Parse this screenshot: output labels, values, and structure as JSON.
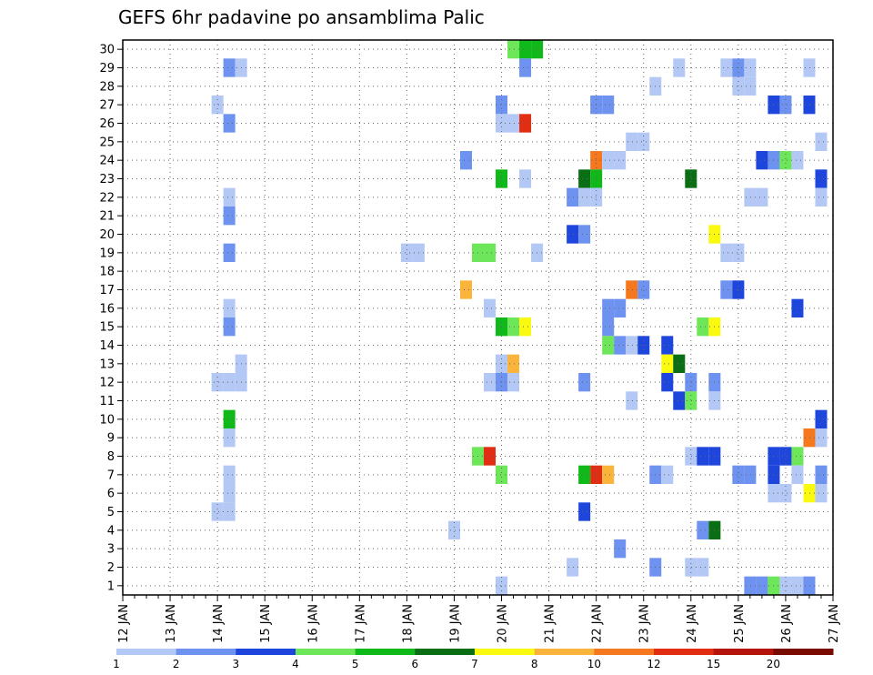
{
  "chart_data": {
    "type": "heatmap",
    "title": "GEFS 6hr padavine po ansamblima Palic",
    "xlabel": "",
    "ylabel": "",
    "x_unit": "days (6-hourly steps)",
    "xlim": [
      12.0,
      27.0
    ],
    "ylim": [
      0,
      30
    ],
    "x_tick_labels": [
      "12 JAN",
      "13 JAN",
      "14 JAN",
      "15 JAN",
      "16 JAN",
      "17 JAN",
      "18 JAN",
      "19 JAN",
      "20 JAN",
      "21 JAN",
      "22 JAN",
      "23 JAN",
      "24 JAN",
      "25 JAN",
      "26 JAN",
      "27 JAN"
    ],
    "y_tick_labels": [
      "1",
      "2",
      "3",
      "4",
      "5",
      "6",
      "7",
      "8",
      "9",
      "10",
      "11",
      "12",
      "13",
      "14",
      "15",
      "16",
      "17",
      "18",
      "19",
      "20",
      "21",
      "22",
      "23",
      "24",
      "25",
      "26",
      "27",
      "28",
      "29",
      "30"
    ],
    "grid": true,
    "colorbar": {
      "labels": [
        "1",
        "2",
        "3",
        "4",
        "5",
        "6",
        "7",
        "8",
        "10",
        "12",
        "15",
        "20"
      ],
      "colors": [
        "#b4c8f5",
        "#6e92ef",
        "#1e46dc",
        "#6ee65a",
        "#10b91a",
        "#0a6e14",
        "#fafa10",
        "#fab43c",
        "#f5781e",
        "#e12d12",
        "#b4140a",
        "#780a00"
      ]
    },
    "cells": [
      {
        "x": 14.0,
        "y": 27,
        "c": 0
      },
      {
        "x": 14.0,
        "y": 12,
        "c": 0
      },
      {
        "x": 14.0,
        "y": 5,
        "c": 0
      },
      {
        "x": 14.25,
        "y": 29,
        "c": 1
      },
      {
        "x": 14.25,
        "y": 26,
        "c": 1
      },
      {
        "x": 14.25,
        "y": 22,
        "c": 0
      },
      {
        "x": 14.25,
        "y": 21,
        "c": 1
      },
      {
        "x": 14.25,
        "y": 19,
        "c": 1
      },
      {
        "x": 14.25,
        "y": 16,
        "c": 0
      },
      {
        "x": 14.25,
        "y": 15,
        "c": 1
      },
      {
        "x": 14.25,
        "y": 12,
        "c": 0
      },
      {
        "x": 14.25,
        "y": 10,
        "c": 4
      },
      {
        "x": 14.25,
        "y": 9,
        "c": 0
      },
      {
        "x": 14.25,
        "y": 7,
        "c": 0
      },
      {
        "x": 14.25,
        "y": 6,
        "c": 0
      },
      {
        "x": 14.25,
        "y": 5,
        "c": 0
      },
      {
        "x": 14.5,
        "y": 29,
        "c": 0
      },
      {
        "x": 14.5,
        "y": 13,
        "c": 0
      },
      {
        "x": 14.5,
        "y": 12,
        "c": 0
      },
      {
        "x": 18.0,
        "y": 19,
        "c": 0
      },
      {
        "x": 18.25,
        "y": 19,
        "c": 0
      },
      {
        "x": 19.0,
        "y": 4,
        "c": 0
      },
      {
        "x": 19.25,
        "y": 24,
        "c": 1
      },
      {
        "x": 19.25,
        "y": 17,
        "c": 7
      },
      {
        "x": 19.5,
        "y": 19,
        "c": 3
      },
      {
        "x": 19.5,
        "y": 8,
        "c": 3
      },
      {
        "x": 19.75,
        "y": 19,
        "c": 3
      },
      {
        "x": 19.75,
        "y": 16,
        "c": 0
      },
      {
        "x": 19.75,
        "y": 12,
        "c": 0
      },
      {
        "x": 19.75,
        "y": 8,
        "c": 9
      },
      {
        "x": 20.0,
        "y": 27,
        "c": 1
      },
      {
        "x": 20.0,
        "y": 26,
        "c": 0
      },
      {
        "x": 20.0,
        "y": 23,
        "c": 4
      },
      {
        "x": 20.0,
        "y": 15,
        "c": 4
      },
      {
        "x": 20.0,
        "y": 13,
        "c": 0
      },
      {
        "x": 20.0,
        "y": 12,
        "c": 1
      },
      {
        "x": 20.0,
        "y": 7,
        "c": 3
      },
      {
        "x": 20.0,
        "y": 1,
        "c": 0
      },
      {
        "x": 20.25,
        "y": 30,
        "c": 3
      },
      {
        "x": 20.25,
        "y": 26,
        "c": 0
      },
      {
        "x": 20.25,
        "y": 15,
        "c": 3
      },
      {
        "x": 20.25,
        "y": 13,
        "c": 7
      },
      {
        "x": 20.25,
        "y": 12,
        "c": 0
      },
      {
        "x": 20.5,
        "y": 30,
        "c": 4
      },
      {
        "x": 20.5,
        "y": 29,
        "c": 1
      },
      {
        "x": 20.5,
        "y": 26,
        "c": 9
      },
      {
        "x": 20.5,
        "y": 23,
        "c": 0
      },
      {
        "x": 20.5,
        "y": 15,
        "c": 6
      },
      {
        "x": 20.75,
        "y": 30,
        "c": 4
      },
      {
        "x": 20.75,
        "y": 19,
        "c": 0
      },
      {
        "x": 21.5,
        "y": 22,
        "c": 1
      },
      {
        "x": 21.5,
        "y": 20,
        "c": 2
      },
      {
        "x": 21.5,
        "y": 2,
        "c": 0
      },
      {
        "x": 21.75,
        "y": 23,
        "c": 5
      },
      {
        "x": 21.75,
        "y": 22,
        "c": 0
      },
      {
        "x": 21.75,
        "y": 20,
        "c": 1
      },
      {
        "x": 21.75,
        "y": 12,
        "c": 1
      },
      {
        "x": 21.75,
        "y": 7,
        "c": 4
      },
      {
        "x": 21.75,
        "y": 5,
        "c": 2
      },
      {
        "x": 22.0,
        "y": 27,
        "c": 1
      },
      {
        "x": 22.0,
        "y": 24,
        "c": 8
      },
      {
        "x": 22.0,
        "y": 23,
        "c": 4
      },
      {
        "x": 22.0,
        "y": 22,
        "c": 0
      },
      {
        "x": 22.0,
        "y": 7,
        "c": 9
      },
      {
        "x": 22.25,
        "y": 27,
        "c": 1
      },
      {
        "x": 22.25,
        "y": 24,
        "c": 0
      },
      {
        "x": 22.25,
        "y": 16,
        "c": 1
      },
      {
        "x": 22.25,
        "y": 15,
        "c": 1
      },
      {
        "x": 22.25,
        "y": 14,
        "c": 3
      },
      {
        "x": 22.25,
        "y": 7,
        "c": 7
      },
      {
        "x": 22.5,
        "y": 24,
        "c": 0
      },
      {
        "x": 22.5,
        "y": 16,
        "c": 1
      },
      {
        "x": 22.5,
        "y": 14,
        "c": 1
      },
      {
        "x": 22.5,
        "y": 3,
        "c": 1
      },
      {
        "x": 22.75,
        "y": 25,
        "c": 0
      },
      {
        "x": 22.75,
        "y": 17,
        "c": 8
      },
      {
        "x": 22.75,
        "y": 14,
        "c": 0
      },
      {
        "x": 22.75,
        "y": 11,
        "c": 0
      },
      {
        "x": 23.0,
        "y": 25,
        "c": 0
      },
      {
        "x": 23.0,
        "y": 17,
        "c": 1
      },
      {
        "x": 23.0,
        "y": 14,
        "c": 2
      },
      {
        "x": 23.25,
        "y": 28,
        "c": 0
      },
      {
        "x": 23.25,
        "y": 7,
        "c": 1
      },
      {
        "x": 23.25,
        "y": 2,
        "c": 1
      },
      {
        "x": 23.5,
        "y": 14,
        "c": 2
      },
      {
        "x": 23.5,
        "y": 13,
        "c": 6
      },
      {
        "x": 23.5,
        "y": 12,
        "c": 2
      },
      {
        "x": 23.5,
        "y": 7,
        "c": 0
      },
      {
        "x": 23.75,
        "y": 29,
        "c": 0
      },
      {
        "x": 23.75,
        "y": 13,
        "c": 5
      },
      {
        "x": 23.75,
        "y": 11,
        "c": 2
      },
      {
        "x": 24.0,
        "y": 23,
        "c": 5
      },
      {
        "x": 24.0,
        "y": 12,
        "c": 1
      },
      {
        "x": 24.0,
        "y": 11,
        "c": 3
      },
      {
        "x": 24.0,
        "y": 8,
        "c": 0
      },
      {
        "x": 24.0,
        "y": 2,
        "c": 0
      },
      {
        "x": 24.25,
        "y": 15,
        "c": 3
      },
      {
        "x": 24.25,
        "y": 8,
        "c": 2
      },
      {
        "x": 24.25,
        "y": 4,
        "c": 1
      },
      {
        "x": 24.25,
        "y": 2,
        "c": 0
      },
      {
        "x": 24.5,
        "y": 20,
        "c": 6
      },
      {
        "x": 24.5,
        "y": 15,
        "c": 6
      },
      {
        "x": 24.5,
        "y": 12,
        "c": 1
      },
      {
        "x": 24.5,
        "y": 11,
        "c": 0
      },
      {
        "x": 24.5,
        "y": 8,
        "c": 2
      },
      {
        "x": 24.5,
        "y": 4,
        "c": 5
      },
      {
        "x": 24.75,
        "y": 29,
        "c": 0
      },
      {
        "x": 24.75,
        "y": 19,
        "c": 0
      },
      {
        "x": 24.75,
        "y": 17,
        "c": 1
      },
      {
        "x": 25.0,
        "y": 29,
        "c": 1
      },
      {
        "x": 25.0,
        "y": 28,
        "c": 0
      },
      {
        "x": 25.0,
        "y": 19,
        "c": 0
      },
      {
        "x": 25.0,
        "y": 17,
        "c": 2
      },
      {
        "x": 25.0,
        "y": 7,
        "c": 1
      },
      {
        "x": 25.25,
        "y": 29,
        "c": 0
      },
      {
        "x": 25.25,
        "y": 28,
        "c": 0
      },
      {
        "x": 25.25,
        "y": 22,
        "c": 0
      },
      {
        "x": 25.25,
        "y": 7,
        "c": 1
      },
      {
        "x": 25.25,
        "y": 1,
        "c": 1
      },
      {
        "x": 25.5,
        "y": 24,
        "c": 2
      },
      {
        "x": 25.5,
        "y": 22,
        "c": 0
      },
      {
        "x": 25.5,
        "y": 1,
        "c": 1
      },
      {
        "x": 25.75,
        "y": 27,
        "c": 2
      },
      {
        "x": 25.75,
        "y": 24,
        "c": 1
      },
      {
        "x": 25.75,
        "y": 8,
        "c": 2
      },
      {
        "x": 25.75,
        "y": 7,
        "c": 2
      },
      {
        "x": 25.75,
        "y": 6,
        "c": 0
      },
      {
        "x": 25.75,
        "y": 1,
        "c": 3
      },
      {
        "x": 26.0,
        "y": 27,
        "c": 1
      },
      {
        "x": 26.0,
        "y": 24,
        "c": 3
      },
      {
        "x": 26.0,
        "y": 8,
        "c": 2
      },
      {
        "x": 26.0,
        "y": 6,
        "c": 0
      },
      {
        "x": 26.0,
        "y": 1,
        "c": 0
      },
      {
        "x": 26.25,
        "y": 24,
        "c": 0
      },
      {
        "x": 26.25,
        "y": 16,
        "c": 2
      },
      {
        "x": 26.25,
        "y": 8,
        "c": 3
      },
      {
        "x": 26.25,
        "y": 7,
        "c": 0
      },
      {
        "x": 26.25,
        "y": 1,
        "c": 0
      },
      {
        "x": 26.5,
        "y": 29,
        "c": 0
      },
      {
        "x": 26.5,
        "y": 27,
        "c": 2
      },
      {
        "x": 26.5,
        "y": 9,
        "c": 8
      },
      {
        "x": 26.5,
        "y": 6,
        "c": 6
      },
      {
        "x": 26.5,
        "y": 1,
        "c": 1
      },
      {
        "x": 26.75,
        "y": 25,
        "c": 0
      },
      {
        "x": 26.75,
        "y": 23,
        "c": 2
      },
      {
        "x": 26.75,
        "y": 22,
        "c": 0
      },
      {
        "x": 26.75,
        "y": 10,
        "c": 2
      },
      {
        "x": 26.75,
        "y": 9,
        "c": 0
      },
      {
        "x": 26.75,
        "y": 7,
        "c": 1
      },
      {
        "x": 26.75,
        "y": 6,
        "c": 0
      }
    ]
  }
}
